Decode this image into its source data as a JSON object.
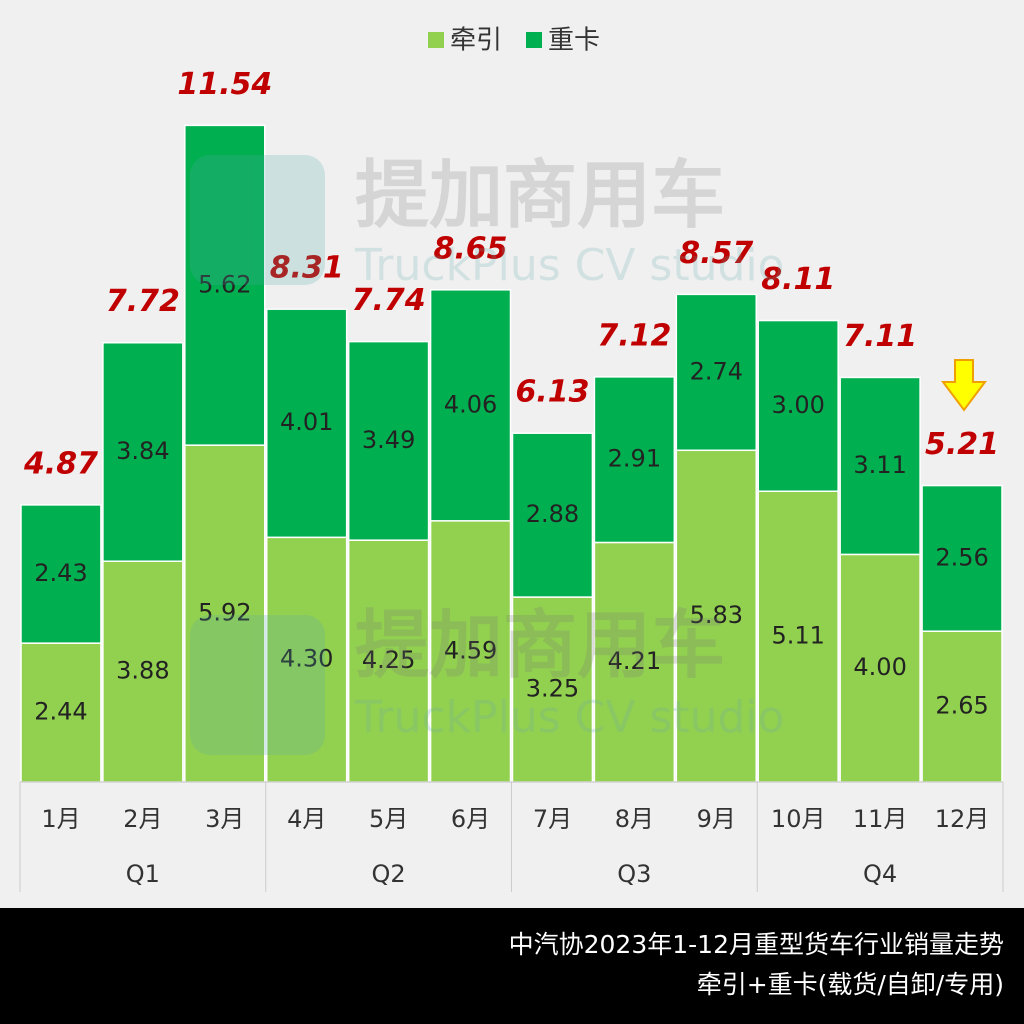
{
  "chart_data": {
    "type": "stacked-bar",
    "categories": [
      "1月",
      "2月",
      "3月",
      "4月",
      "5月",
      "6月",
      "7月",
      "8月",
      "9月",
      "10月",
      "11月",
      "12月"
    ],
    "groups": [
      {
        "name": "Q1",
        "size": 3
      },
      {
        "name": "Q2",
        "size": 3
      },
      {
        "name": "Q3",
        "size": 3
      },
      {
        "name": "Q4",
        "size": 3
      }
    ],
    "series": [
      {
        "name": "牵引",
        "color": "#92d050",
        "values": [
          2.44,
          3.88,
          5.92,
          4.3,
          4.25,
          4.59,
          3.25,
          4.21,
          5.83,
          5.11,
          4.0,
          2.65
        ]
      },
      {
        "name": "重卡",
        "color": "#00b050",
        "values": [
          2.43,
          3.84,
          5.62,
          4.01,
          3.49,
          4.06,
          2.88,
          2.91,
          2.74,
          3.0,
          3.11,
          2.56
        ]
      }
    ],
    "value_labels": [
      [
        "2.44",
        "3.88",
        "5.92",
        "4.30",
        "4.25",
        "4.59",
        "3.25",
        "4.21",
        "5.83",
        "5.11",
        "4.00",
        "2.65"
      ],
      [
        "2.43",
        "3.84",
        "5.62",
        "4.01",
        "3.49",
        "4.06",
        "2.88",
        "2.91",
        "2.74",
        "3.00",
        "3.11",
        "2.56"
      ]
    ],
    "totals": [
      4.87,
      7.72,
      11.54,
      8.31,
      7.74,
      8.65,
      6.13,
      7.12,
      8.57,
      8.11,
      7.11,
      5.21
    ],
    "watermark": {
      "title": "提加商用车",
      "subtitle": "TruckPlus CV studio"
    },
    "footer": [
      "中汽协2023年1-12月重型货车行业销量走势",
      "牵引+重卡(载货/自卸/专用)"
    ]
  }
}
